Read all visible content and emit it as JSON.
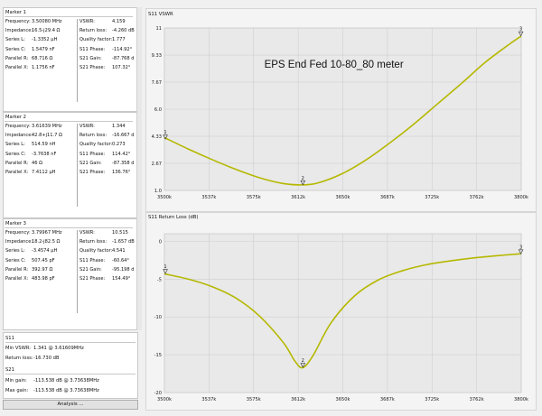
{
  "markers": [
    {
      "title": "Marker 1",
      "left": [
        [
          "Frequency:",
          "3.50080 MHz"
        ],
        [
          "Impedance:",
          "16.5-j29.4 Ω"
        ],
        [
          "Series L:",
          "-1.3352 µH"
        ],
        [
          "Series C:",
          "1.5479 nF"
        ],
        [
          "Parallel R:",
          "68.716 Ω"
        ],
        [
          "Parallel X:",
          "1.1756 nF"
        ]
      ],
      "right": [
        [
          "VSWR:",
          "4.159"
        ],
        [
          "Return loss:",
          "-4.260 dB"
        ],
        [
          "Quality factor:",
          "1.777"
        ],
        [
          "S11 Phase:",
          "-114.92°"
        ],
        [
          "S21 Gain:",
          "-87.768 d"
        ],
        [
          "S21 Phase:",
          "107.32°"
        ]
      ]
    },
    {
      "title": "Marker 2",
      "left": [
        [
          "Frequency:",
          "3.61639 MHz"
        ],
        [
          "Impedance:",
          "42.8+j11.7 Ω"
        ],
        [
          "Series L:",
          "514.59 nH"
        ],
        [
          "Series C:",
          "-3.7638 nF"
        ],
        [
          "Parallel R:",
          "46 Ω"
        ],
        [
          "Parallel X:",
          "7.4112 µH"
        ]
      ],
      "right": [
        [
          "VSWR:",
          "1.344"
        ],
        [
          "Return loss:",
          "-16.667 d"
        ],
        [
          "Quality factor:",
          "0.273"
        ],
        [
          "S11 Phase:",
          "114.42°"
        ],
        [
          "S21 Gain:",
          "-87.358 d"
        ],
        [
          "S21 Phase:",
          "136.76°"
        ]
      ]
    },
    {
      "title": "Marker 3",
      "left": [
        [
          "Frequency:",
          "3.79967 MHz"
        ],
        [
          "Impedance:",
          "18.2-j82.5 Ω"
        ],
        [
          "Series L:",
          "-3.4574 µH"
        ],
        [
          "Series C:",
          "507.45 pF"
        ],
        [
          "Parallel R:",
          "392.97 Ω"
        ],
        [
          "Parallel X:",
          "483.98 pF"
        ]
      ],
      "right": [
        [
          "VSWR:",
          "10.515"
        ],
        [
          "Return loss:",
          "-1.657 dB"
        ],
        [
          "Quality factor:",
          "4.541"
        ],
        [
          "S11 Phase:",
          "-60.64°"
        ],
        [
          "S21 Gain:",
          "-95.198 d"
        ],
        [
          "S21 Phase:",
          "154.49°"
        ]
      ]
    }
  ],
  "summary": {
    "s11_title": "S11",
    "s11_rows": [
      [
        "Min VSWR:",
        "1.341 @ 3.61609MHz"
      ],
      [
        "Return loss:",
        "-16.730 dB"
      ]
    ],
    "s21_title": "S21",
    "s21_rows": [
      [
        "Min gain:",
        "-113.538 dB @ 3.73638MHz"
      ],
      [
        "Max gain:",
        "-113.538 dB @ 3.73638MHz"
      ]
    ]
  },
  "analysis_button": "Analysis ...",
  "colors": {
    "trace": "#b5b800",
    "grid": "#cfcfcf",
    "plot_bg": "#e9e9e9"
  },
  "chart_data": [
    {
      "type": "line",
      "title": "S11 VSWR",
      "annotation": "EPS End Fed 10-80_80 meter",
      "x_ticks": [
        "3500k",
        "3537k",
        "3575k",
        "3612k",
        "3650k",
        "3687k",
        "3725k",
        "3762k",
        "3800k"
      ],
      "y_ticks": [
        "11",
        "9.33",
        "7.67",
        "6.0",
        "4.33",
        "2.67",
        "1.0"
      ],
      "xlim": [
        3500,
        3800
      ],
      "ylim": [
        1.0,
        11.0
      ],
      "x": [
        3500,
        3520,
        3540,
        3560,
        3580,
        3600,
        3616.4,
        3630,
        3650,
        3670,
        3690,
        3710,
        3730,
        3750,
        3770,
        3790,
        3800
      ],
      "y": [
        4.25,
        3.55,
        2.9,
        2.3,
        1.78,
        1.42,
        1.34,
        1.48,
        2.05,
        2.9,
        3.95,
        5.1,
        6.35,
        7.6,
        8.9,
        10.0,
        10.5
      ],
      "markers": [
        {
          "label": "1",
          "x": 3500.8,
          "y": 4.159
        },
        {
          "label": "2",
          "x": 3616.4,
          "y": 1.344
        },
        {
          "label": "3",
          "x": 3799.7,
          "y": 10.515
        }
      ]
    },
    {
      "type": "line",
      "title": "S11 Return Loss (dB)",
      "x_ticks": [
        "3500k",
        "3537k",
        "3575k",
        "3612k",
        "3650k",
        "3687k",
        "3725k",
        "3762k",
        "3800k"
      ],
      "y_ticks": [
        "0",
        "-5",
        "-10",
        "-15",
        "-20"
      ],
      "xlim": [
        3500,
        3800
      ],
      "ylim": [
        -20,
        1
      ],
      "x": [
        3500,
        3520,
        3540,
        3560,
        3580,
        3600,
        3610,
        3616.4,
        3625,
        3640,
        3660,
        3680,
        3700,
        3720,
        3740,
        3760,
        3780,
        3800
      ],
      "y": [
        -4.3,
        -5.0,
        -6.0,
        -7.5,
        -9.9,
        -13.4,
        -15.9,
        -16.7,
        -15.1,
        -10.8,
        -7.2,
        -5.1,
        -3.9,
        -3.1,
        -2.6,
        -2.2,
        -1.9,
        -1.65
      ],
      "markers": [
        {
          "label": "1",
          "x": 3500.8,
          "y": -4.26
        },
        {
          "label": "2",
          "x": 3616.4,
          "y": -16.667
        },
        {
          "label": "3",
          "x": 3799.7,
          "y": -1.657
        }
      ]
    }
  ]
}
